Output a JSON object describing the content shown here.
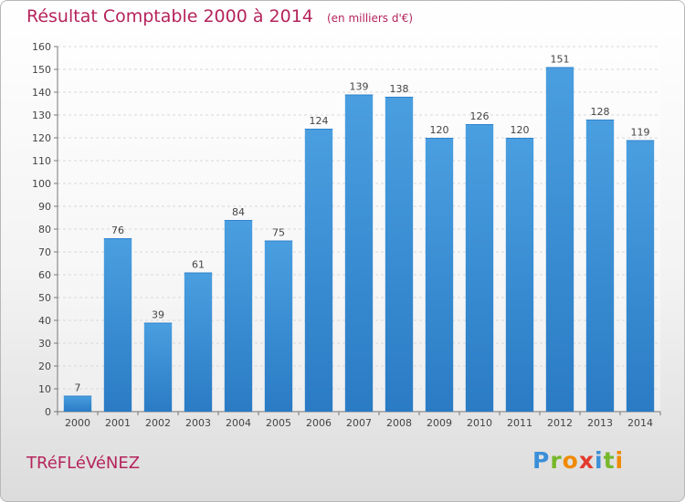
{
  "title": "Résultat Comptable 2000 à 2014",
  "unit_note": "(en milliers d'€)",
  "commune": "TRéFLéVéNEZ",
  "logo": {
    "letters": [
      "P",
      "r",
      "o",
      "x",
      "i",
      "t",
      "i"
    ]
  },
  "colors": {
    "accent": "#b5245c",
    "bar": "#4a9fe0",
    "bar_dark": "#2a7bc4",
    "grid": "#d8d8d8"
  },
  "chart_data": {
    "type": "bar",
    "categories": [
      "2000",
      "2001",
      "2002",
      "2003",
      "2004",
      "2005",
      "2006",
      "2007",
      "2008",
      "2009",
      "2010",
      "2011",
      "2012",
      "2013",
      "2014"
    ],
    "values": [
      7,
      76,
      39,
      61,
      84,
      75,
      124,
      139,
      138,
      120,
      126,
      120,
      151,
      128,
      119
    ],
    "ylim": [
      0,
      160
    ],
    "yticks": [
      0,
      10,
      20,
      30,
      40,
      50,
      60,
      70,
      80,
      90,
      100,
      110,
      120,
      130,
      140,
      150,
      160
    ],
    "grid": true,
    "data_labels": true
  }
}
